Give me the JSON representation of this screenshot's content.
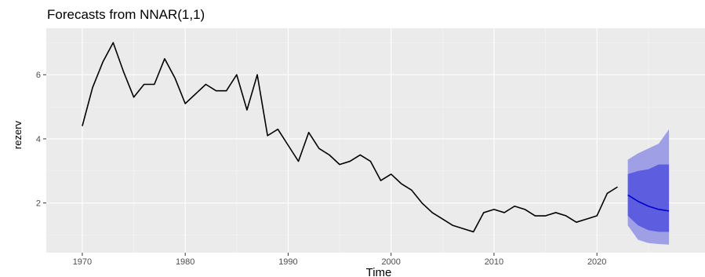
{
  "chart_data": {
    "type": "line",
    "title": "Forecasts from NNAR(1,1)",
    "xlabel": "Time",
    "ylabel": "rezerv",
    "xlim": [
      1966.5,
      2030.5
    ],
    "ylim": [
      0.45,
      7.45
    ],
    "x_ticks": [
      "1970",
      "1980",
      "1990",
      "2000",
      "2010",
      "2020"
    ],
    "y_ticks": [
      "2",
      "4",
      "6"
    ],
    "grid": true,
    "series": [
      {
        "role": "observed",
        "color": "#000000",
        "x": [
          1970,
          1971,
          1972,
          1973,
          1974,
          1975,
          1976,
          1977,
          1978,
          1979,
          1980,
          1981,
          1982,
          1983,
          1984,
          1985,
          1986,
          1987,
          1988,
          1989,
          1990,
          1991,
          1992,
          1993,
          1994,
          1995,
          1996,
          1997,
          1998,
          1999,
          2000,
          2001,
          2002,
          2003,
          2004,
          2005,
          2006,
          2007,
          2008,
          2009,
          2010,
          2011,
          2012,
          2013,
          2014,
          2015,
          2016,
          2017,
          2018,
          2019,
          2020,
          2021,
          2022
        ],
        "y": [
          4.4,
          5.6,
          6.4,
          7.0,
          6.1,
          5.3,
          5.7,
          5.7,
          6.5,
          5.9,
          5.1,
          5.4,
          5.7,
          5.5,
          5.5,
          6.0,
          4.9,
          6.0,
          4.1,
          4.3,
          3.8,
          3.3,
          4.2,
          3.7,
          3.5,
          3.2,
          3.3,
          3.5,
          3.3,
          2.7,
          2.9,
          2.6,
          2.4,
          2.0,
          1.7,
          1.5,
          1.3,
          1.2,
          1.1,
          1.7,
          1.8,
          1.7,
          1.9,
          1.8,
          1.6,
          1.6,
          1.7,
          1.6,
          1.4,
          1.5,
          1.6,
          2.3,
          2.5
        ]
      },
      {
        "role": "forecast",
        "color": "#0000cc",
        "x": [
          2023,
          2024,
          2025,
          2026,
          2027
        ],
        "y": [
          2.25,
          2.05,
          1.9,
          1.8,
          1.75
        ]
      }
    ],
    "intervals": [
      {
        "level": "95%",
        "color": "#9f9fe6",
        "x": [
          2023,
          2024,
          2025,
          2026,
          2027
        ],
        "lower": [
          1.3,
          0.85,
          0.75,
          0.72,
          0.7
        ],
        "upper": [
          3.35,
          3.55,
          3.7,
          3.85,
          4.3
        ]
      },
      {
        "level": "80%",
        "color": "#5d5de0",
        "x": [
          2023,
          2024,
          2025,
          2026,
          2027
        ],
        "lower": [
          1.6,
          1.3,
          1.15,
          1.1,
          1.1
        ],
        "upper": [
          2.9,
          3.0,
          3.05,
          3.2,
          3.2
        ]
      }
    ],
    "colors": {
      "panel_background": "#ebebeb",
      "grid_major": "#ffffff",
      "grid_minor": "#f4f4f4"
    }
  }
}
